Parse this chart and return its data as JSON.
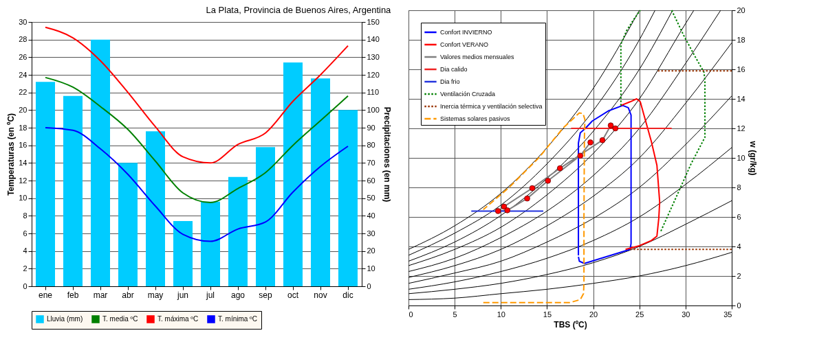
{
  "chart_data": [
    {
      "type": "bar",
      "title": "La Plata, Provincia de Buenos Aires, Argentina",
      "ylabel": "Temperaturas (en ºC)",
      "y2label": "Precipitaciones (en mm)",
      "categories": [
        "ene",
        "feb",
        "mar",
        "abr",
        "may",
        "jun",
        "jul",
        "ago",
        "sep",
        "oct",
        "nov",
        "dic"
      ],
      "series": [
        {
          "name": "Lluvia (mm)",
          "type": "bar",
          "axis": "y2",
          "color": "#00ccff",
          "values": [
            116,
            108,
            140,
            70,
            88,
            37,
            48,
            62,
            79,
            127,
            118,
            100
          ]
        },
        {
          "name": "T. media ºC",
          "type": "line",
          "color": "#008000",
          "values": [
            23.7,
            22.6,
            20.4,
            17.8,
            14.2,
            10.6,
            9.5,
            11.1,
            12.9,
            16.0,
            18.8,
            21.6
          ]
        },
        {
          "name": "T. máxima ºC",
          "type": "line",
          "color": "#ff0000",
          "values": [
            29.4,
            28.2,
            25.6,
            22.0,
            18.1,
            14.7,
            14.0,
            16.1,
            17.4,
            21.0,
            24.0,
            27.3
          ]
        },
        {
          "name": "T. mínima ºC",
          "type": "line",
          "color": "#0000ff",
          "values": [
            18.0,
            17.7,
            15.6,
            12.7,
            9.1,
            5.9,
            5.1,
            6.5,
            7.3,
            10.7,
            13.6,
            15.9
          ]
        }
      ],
      "ylim": [
        0,
        30
      ],
      "yticks": [
        0,
        2,
        4,
        6,
        8,
        10,
        12,
        14,
        16,
        18,
        20,
        22,
        24,
        26,
        28,
        30
      ],
      "y2lim": [
        0,
        150
      ],
      "y2ticks": [
        0,
        10,
        20,
        30,
        40,
        50,
        60,
        70,
        80,
        90,
        100,
        110,
        120,
        130,
        140,
        150
      ],
      "grid": "y",
      "legend": "bottom"
    },
    {
      "type": "line",
      "xlabel": "TBS (ºC)",
      "ylabel": "w (gr/kg)",
      "xlim": [
        0,
        35
      ],
      "xticks": [
        0,
        5,
        10,
        15,
        20,
        25,
        30,
        35
      ],
      "ylim": [
        0,
        20
      ],
      "yticks": [
        0,
        2,
        4,
        6,
        8,
        10,
        12,
        14,
        16,
        18,
        20
      ],
      "grid": true,
      "legend": "top left",
      "series": [
        {
          "color": "#000000",
          "x": [
            0,
            5,
            10,
            15,
            20,
            25
          ],
          "values": [
            3.8,
            5.4,
            7.6,
            10.7,
            14.7,
            20.0
          ]
        },
        {
          "color": "#000000",
          "x": [
            0,
            5,
            10,
            15,
            20,
            25,
            26.7
          ],
          "values": [
            3.4,
            4.9,
            6.8,
            9.6,
            13.2,
            18.0,
            20.0
          ]
        },
        {
          "color": "#000000",
          "x": [
            0,
            5,
            10,
            15,
            20,
            25,
            28.6
          ],
          "values": [
            3.0,
            4.3,
            6.1,
            8.6,
            11.8,
            16.0,
            20.0
          ]
        },
        {
          "color": "#000000",
          "x": [
            0,
            5,
            10,
            15,
            20,
            25,
            30,
            30.9
          ],
          "values": [
            2.7,
            3.8,
            5.3,
            7.5,
            10.3,
            14.0,
            19.1,
            20.0
          ]
        },
        {
          "color": "#000000",
          "x": [
            0,
            5,
            10,
            15,
            20,
            25,
            30,
            33.8
          ],
          "values": [
            2.3,
            3.2,
            4.6,
            6.4,
            8.8,
            12.0,
            16.4,
            20.0
          ]
        },
        {
          "color": "#000000",
          "x": [
            0,
            5,
            10,
            15,
            20,
            25,
            30,
            35
          ],
          "values": [
            1.9,
            2.7,
            3.8,
            5.4,
            7.4,
            10.0,
            13.7,
            17.8
          ]
        },
        {
          "color": "#000000",
          "x": [
            0,
            5,
            10,
            15,
            20,
            25,
            30,
            35
          ],
          "values": [
            1.5,
            2.2,
            3.0,
            4.3,
            5.9,
            8.0,
            10.9,
            14.2
          ]
        },
        {
          "color": "#000000",
          "x": [
            0,
            5,
            10,
            15,
            20,
            25,
            30,
            35
          ],
          "values": [
            1.1,
            1.6,
            2.3,
            3.2,
            4.4,
            6.0,
            8.2,
            10.7
          ]
        },
        {
          "color": "#000000",
          "x": [
            0,
            5,
            10,
            15,
            20,
            25,
            30,
            35
          ],
          "values": [
            0.8,
            1.1,
            1.5,
            2.1,
            2.9,
            4.0,
            5.5,
            7.1
          ]
        },
        {
          "color": "#000000",
          "x": [
            0,
            5,
            10,
            15,
            20,
            25,
            30,
            35
          ],
          "values": [
            0.4,
            0.5,
            0.8,
            1.1,
            1.5,
            2.0,
            2.7,
            3.6
          ]
        },
        {
          "name": "Confort INVIERNO",
          "color": "#0000ff",
          "line_style": "solid",
          "x": [
            18.4,
            18.5,
            19.05,
            24.0,
            24.1,
            24.1,
            23.8,
            23.2,
            21.7,
            19.9,
            19.15,
            18.6,
            18.4,
            18.4
          ],
          "values": [
            3.3,
            3.0,
            2.85,
            3.8,
            4.2,
            12.9,
            13.4,
            13.55,
            13.2,
            12.5,
            12.0,
            11.7,
            11.0,
            3.4
          ]
        },
        {
          "name": "Confort VERANO",
          "color": "#ff0000",
          "line_style": "solid",
          "x": [
            23.0,
            24.0,
            24.7,
            25.1,
            25.5,
            26.3,
            26.9,
            27.2,
            27.1,
            26.9,
            26.3,
            25.0,
            23.5
          ],
          "values": [
            13.55,
            13.8,
            14.0,
            13.8,
            12.9,
            11.1,
            9.5,
            7.0,
            5.9,
            4.7,
            4.4,
            4.05,
            3.8
          ]
        },
        {
          "name": "Valores medios mensuales",
          "color": "#808080",
          "line_style": "solid",
          "marker": "circle",
          "colors": [
            "#ff0000",
            "#ff0000",
            "#ff0000",
            "#ff0000",
            "#ff0000",
            "#ff0000",
            "#ff0000",
            "#ff0000",
            "#ff0000",
            "#ff0000",
            "#ff0000",
            "#ff0000"
          ],
          "x": [
            22.4,
            21.9,
            21.0,
            16.4,
            13.4,
            10.35,
            9.7,
            10.7,
            12.85,
            15.1,
            18.6,
            19.7
          ],
          "values": [
            12.0,
            12.2,
            11.2,
            9.3,
            7.95,
            6.7,
            6.4,
            6.45,
            7.25,
            8.45,
            10.15,
            11.05
          ]
        },
        {
          "name": "Dia calido",
          "color": "#ee2222",
          "line_style": "solid",
          "x": [
            17.6,
            28.5
          ],
          "values": [
            12.0,
            12.0
          ]
        },
        {
          "name": "Dia frio",
          "color": "#2233dd",
          "line_style": "solid",
          "x": [
            6.8,
            14.6
          ],
          "values": [
            6.4,
            6.4
          ]
        },
        {
          "name": "Ventilación Cruzada",
          "color": "#008000",
          "line_style": "dotted",
          "x": [
            23.0,
            23.0,
            23.6,
            24.3,
            25.1,
            null,
            28.5,
            29.8,
            31.0,
            32.0,
            32.1,
            32.1,
            30.6,
            29.1,
            27.3
          ],
          "values": [
            13.55,
            17.7,
            18.6,
            19.3,
            20.0,
            null,
            20.0,
            18.3,
            16.9,
            15.8,
            15.2,
            11.4,
            9.6,
            7.5,
            5.0
          ]
        },
        {
          "name": "Inercia térmica y ventilación selectiva",
          "color": "#993300",
          "line_style": "dotted",
          "x": [
            27.0,
            35,
            null,
            24.0,
            35
          ],
          "values": [
            15.9,
            15.9,
            null,
            3.8,
            3.8
          ]
        },
        {
          "name": "Sistemas solares pasivos",
          "color": "#ff9900",
          "line_style": "dashed",
          "x": [
            8.1,
            11,
            14,
            17.5,
            18.6,
            18.95,
            19.0,
            19.0,
            19.05,
            19.1,
            18.9,
            18.5,
            17.9,
            16.7,
            14.1,
            10.9,
            8.1
          ],
          "values": [
            0.2,
            0.2,
            0.2,
            0.2,
            0.4,
            0.8,
            1.5,
            6.0,
            11.4,
            12.6,
            13.0,
            13.05,
            12.7,
            12.0,
            10.0,
            8.0,
            6.5
          ]
        }
      ]
    }
  ]
}
